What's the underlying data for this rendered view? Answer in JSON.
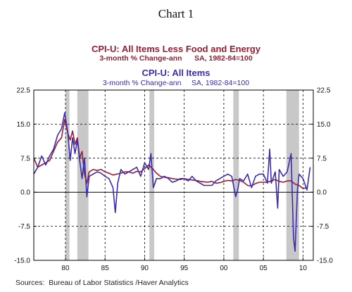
{
  "title": "Chart 1",
  "source": "Sources:  Bureau of Labor Statistics /Haver Analytics",
  "chart_data": {
    "type": "line",
    "xlabel": "",
    "ylabel": "",
    "xlim": [
      1976,
      2011.3
    ],
    "ylim": [
      -15,
      22.5
    ],
    "y_ticks": [
      22.5,
      15.0,
      7.5,
      0.0,
      -7.5,
      -15.0
    ],
    "y_tick_labels": [
      "22.5",
      "15.0",
      "7.5",
      "0.0",
      "-7.5",
      "-15.0"
    ],
    "x_ticks": [
      1980,
      1985,
      1990,
      1995,
      2000,
      2005,
      2010
    ],
    "x_tick_labels": [
      "80",
      "85",
      "90",
      "95",
      "00",
      "05",
      "10"
    ],
    "grid": "dashed",
    "legend_position": "top-center",
    "recessions": [
      [
        1980.0,
        1980.5
      ],
      [
        1981.5,
        1982.9
      ],
      [
        1990.6,
        1991.2
      ],
      [
        2001.2,
        2001.9
      ],
      [
        2007.9,
        2009.5
      ]
    ],
    "series": [
      {
        "name": "CPI-U: All Items Less Food and Energy",
        "subtitle": "3-month % Change-ann      SA, 1982-84=100",
        "color": "#9b1b30",
        "x": [
          1976.0,
          1976.5,
          1977.0,
          1977.5,
          1978.0,
          1978.5,
          1979.0,
          1979.5,
          1979.9,
          1980.3,
          1980.6,
          1980.9,
          1981.2,
          1981.5,
          1981.8,
          1982.1,
          1982.4,
          1982.7,
          1983.0,
          1983.5,
          1984.0,
          1984.5,
          1985.0,
          1985.5,
          1986.0,
          1986.5,
          1987.0,
          1987.5,
          1988.0,
          1988.5,
          1989.0,
          1989.5,
          1990.0,
          1990.5,
          1991.0,
          1991.5,
          1992.0,
          1992.5,
          1993.0,
          1993.5,
          1994.0,
          1994.5,
          1995.0,
          1995.5,
          1996.0,
          1996.5,
          1997.0,
          1997.5,
          1998.0,
          1998.5,
          1999.0,
          1999.5,
          2000.0,
          2000.5,
          2001.0,
          2001.5,
          2002.0,
          2002.5,
          2003.0,
          2003.5,
          2004.0,
          2004.5,
          2005.0,
          2005.5,
          2006.0,
          2006.5,
          2007.0,
          2007.5,
          2008.0,
          2008.5,
          2009.0,
          2009.5,
          2010.0,
          2010.5
        ],
        "values": [
          7.5,
          5.5,
          6.0,
          6.5,
          7.0,
          9.0,
          11.0,
          12.0,
          16.0,
          13.0,
          11.5,
          13.5,
          10.5,
          12.0,
          7.5,
          9.0,
          4.0,
          2.0,
          4.5,
          5.0,
          4.8,
          5.0,
          4.5,
          4.2,
          3.8,
          4.0,
          4.2,
          4.5,
          4.5,
          4.2,
          4.6,
          4.5,
          5.2,
          6.0,
          5.2,
          4.2,
          3.5,
          3.3,
          3.2,
          3.0,
          2.9,
          2.8,
          3.0,
          2.8,
          2.7,
          2.6,
          2.4,
          2.3,
          2.2,
          2.4,
          2.0,
          2.1,
          2.4,
          2.6,
          2.5,
          2.8,
          2.6,
          2.2,
          1.5,
          1.4,
          1.9,
          2.2,
          2.2,
          2.2,
          2.5,
          2.8,
          2.4,
          2.2,
          2.5,
          2.5,
          1.8,
          1.5,
          0.8,
          1.0
        ]
      },
      {
        "name": "CPI-U: All Items",
        "subtitle": "3-month % Change-ann     SA, 1982-84=100",
        "color": "#3a2cb0",
        "x": [
          1976.0,
          1976.5,
          1977.0,
          1977.5,
          1978.0,
          1978.5,
          1979.0,
          1979.5,
          1979.9,
          1980.3,
          1980.6,
          1980.9,
          1981.2,
          1981.5,
          1981.8,
          1982.1,
          1982.4,
          1982.7,
          1983.0,
          1983.5,
          1984.0,
          1984.5,
          1985.0,
          1985.5,
          1986.0,
          1986.3,
          1986.6,
          1987.0,
          1987.5,
          1988.0,
          1988.5,
          1989.0,
          1989.5,
          1990.0,
          1990.5,
          1990.8,
          1991.1,
          1991.5,
          1992.0,
          1992.5,
          1993.0,
          1993.5,
          1994.0,
          1994.5,
          1995.0,
          1995.5,
          1996.0,
          1996.5,
          1997.0,
          1997.5,
          1998.0,
          1998.5,
          1999.0,
          1999.5,
          2000.0,
          2000.5,
          2001.0,
          2001.5,
          2001.8,
          2002.0,
          2002.5,
          2003.0,
          2003.5,
          2004.0,
          2004.5,
          2005.0,
          2005.5,
          2005.8,
          2006.0,
          2006.5,
          2006.8,
          2007.0,
          2007.5,
          2008.0,
          2008.5,
          2008.8,
          2009.0,
          2009.3,
          2009.5,
          2010.0,
          2010.5,
          2010.9
        ],
        "values": [
          4.0,
          5.5,
          8.0,
          6.0,
          8.0,
          9.5,
          12.5,
          14.0,
          17.5,
          13.0,
          7.0,
          12.0,
          8.5,
          11.5,
          7.0,
          3.0,
          7.5,
          -1.0,
          3.5,
          4.0,
          4.5,
          4.2,
          3.5,
          3.0,
          1.0,
          -4.5,
          2.0,
          5.0,
          4.0,
          4.5,
          5.0,
          5.5,
          3.5,
          6.5,
          5.0,
          8.5,
          1.0,
          3.0,
          3.0,
          3.5,
          3.0,
          2.2,
          2.5,
          3.0,
          3.0,
          2.5,
          3.5,
          2.5,
          2.0,
          1.5,
          1.5,
          1.5,
          2.5,
          3.0,
          3.5,
          4.0,
          3.5,
          -1.0,
          1.0,
          3.0,
          2.5,
          4.0,
          1.0,
          3.5,
          4.0,
          4.0,
          2.0,
          9.5,
          2.0,
          4.5,
          -3.5,
          5.0,
          3.5,
          4.5,
          8.5,
          -10.0,
          -13.0,
          0.5,
          4.0,
          3.0,
          0.5,
          5.5
        ]
      }
    ]
  },
  "colors": {
    "recession_shade": "#c8c8c8",
    "grid": "#000000"
  }
}
